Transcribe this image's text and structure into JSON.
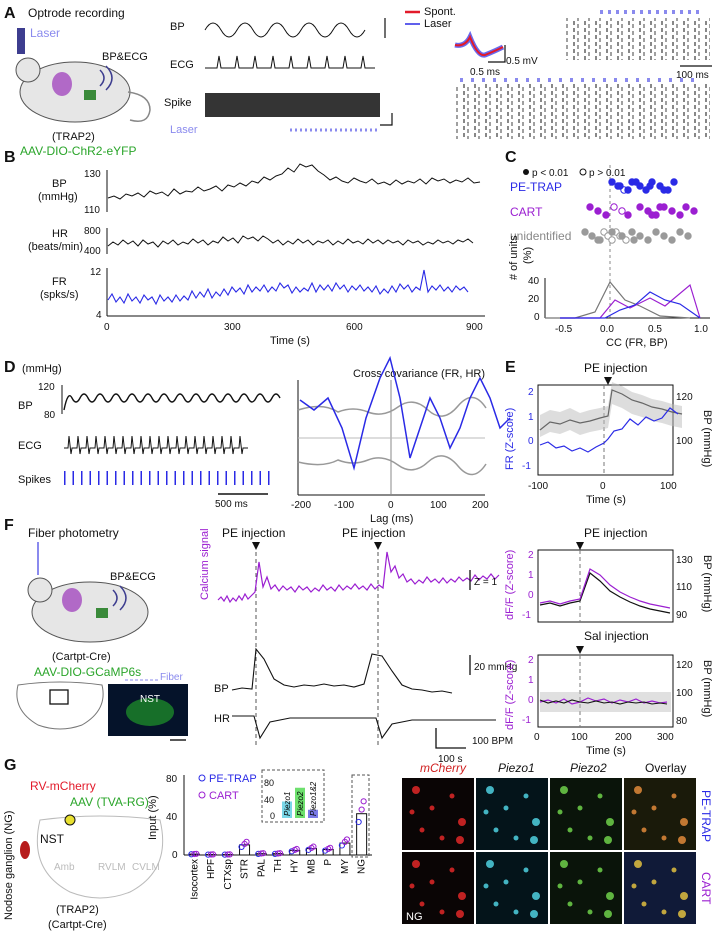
{
  "panels": {
    "A": {
      "letter": "A",
      "title": "Optrode recording",
      "laser": "Laser",
      "bp_ecg": "BP&ECG",
      "mouse_line": "(TRAP2)",
      "virus": "AAV-DIO-ChR2-eYFP",
      "trace_bp": "BP",
      "trace_ecg": "ECG",
      "trace_spike": "Spike",
      "trace_laser": "Laser",
      "legend_spont": "Spont.",
      "legend_laser": "Laser",
      "scale_mv": "0.5 mV",
      "scale_ms": "0.5 ms",
      "scale_raster": "100 ms"
    },
    "B": {
      "letter": "B",
      "bp_label_1": "BP",
      "bp_label_2": "(mmHg)",
      "hr_label_1": "HR",
      "hr_label_2": "(beats/min)",
      "fr_label_1": "FR",
      "fr_label_2": "(spks/s)",
      "bp_ticks": [
        "130",
        "110"
      ],
      "hr_ticks": [
        "800",
        "400"
      ],
      "fr_ticks": [
        "12",
        "4"
      ],
      "x_ticks": [
        "0",
        "300",
        "600",
        "900"
      ],
      "xlabel": "Time (s)"
    },
    "C": {
      "letter": "C",
      "legend_sig": "p < 0.01",
      "legend_ns": "p > 0.01",
      "group_pe": "PE-TRAP",
      "group_cart": "CART",
      "group_unid": "unidentified",
      "ylabel_1": "# of units",
      "ylabel_2": "(%)",
      "y_ticks": [
        "40",
        "20",
        "0"
      ],
      "x_ticks": [
        "-0.5",
        "0.0",
        "0.5",
        "1.0"
      ],
      "xlabel": "CC (FR, BP)"
    },
    "D": {
      "letter": "D",
      "unit": "(mmHg)",
      "bp_ticks": [
        "120",
        "80"
      ],
      "bp": "BP",
      "ecg": "ECG",
      "spikes": "Spikes",
      "scale": "500 ms",
      "cc_title": "Cross covariance (FR, HR)",
      "x_ticks": [
        "-200",
        "-100",
        "0",
        "100",
        "200"
      ],
      "xlabel": "Lag (ms)"
    },
    "E": {
      "letter": "E",
      "title": "PE injection",
      "ylabel_left": "FR (Z-score)",
      "ylabel_right": "BP (mmHg)",
      "left_ticks": [
        "2",
        "1",
        "0",
        "-1"
      ],
      "right_ticks": [
        "120",
        "100"
      ],
      "x_ticks": [
        "-100",
        "0",
        "100"
      ],
      "xlabel": "Time (s)"
    },
    "F": {
      "letter": "F",
      "fiber_photometry": "Fiber photometry",
      "bp_ecg": "BP&ECG",
      "mouse_line": "(Cartpt-Cre)",
      "virus": "AAV-DIO-GCaMP6s",
      "fiber": "Fiber",
      "nst": "NST",
      "pe1": "PE injection",
      "pe2": "PE injection",
      "calcium": "Calcium signal",
      "z_scale": "Z = 1",
      "bp": "BP",
      "bp_scale": "20 mmHg",
      "hr": "HR",
      "hr_scale": "100 BPM",
      "t_scale": "100 s",
      "pe_title": "PE injection",
      "sal_title": "Sal injection",
      "ylabel_left": "dF/F (Z-score)",
      "ylabel_right": "BP (mmHg)",
      "top_left_ticks": [
        "2",
        "1",
        "0",
        "-1"
      ],
      "top_right_ticks": [
        "130",
        "110",
        "90"
      ],
      "bot_left_ticks": [
        "2",
        "1",
        "0",
        "-1"
      ],
      "bot_right_ticks": [
        "120",
        "100",
        "80"
      ],
      "x_ticks": [
        "0",
        "100",
        "200",
        "300"
      ],
      "xlabel": "Time (s)"
    },
    "G": {
      "letter": "G",
      "rv": "RV-mCherry",
      "aav": "AAV (TVA-RG)",
      "ng": "Nodose ganglion (NG)",
      "nst": "NST",
      "amb": "Amb",
      "rvlm": "RVLM",
      "cvlm": "CVLM",
      "mouse_line_1": "(TRAP2)",
      "mouse_line_2": "(Cartpt-Cre)",
      "legend_pe": "PE-TRAP",
      "legend_cart": "CART",
      "ylabel": "Input (%)",
      "y_ticks": [
        "80",
        "40",
        "0"
      ],
      "inset_ticks": [
        "80",
        "40",
        "0"
      ],
      "inset_bars": [
        "Piezo1",
        "Piezo2",
        "Piezo1&2"
      ],
      "col_mcherry": "mCherry",
      "col_piezo1": "Piezo1",
      "col_piezo2": "Piezo2",
      "col_overlay": "Overlay",
      "row_pe": "PE-TRAP",
      "row_cart": "CART",
      "ng_label": "NG"
    }
  },
  "chart_data": [
    {
      "type": "bar",
      "panel": "G",
      "categories": [
        "Isocortex",
        "HPF",
        "CTXsp",
        "STR",
        "PAL",
        "TH",
        "HY",
        "MB",
        "P",
        "MY",
        "NG"
      ],
      "values": [
        1,
        0.5,
        0.5,
        11,
        1.5,
        1.5,
        5,
        7,
        6,
        13,
        45
      ],
      "ylabel": "Input (%)",
      "ylim": [
        0,
        85
      ]
    },
    {
      "type": "bar",
      "panel": "G-inset",
      "categories": [
        "Piezo1",
        "Piezo2",
        "Piezo1&2"
      ],
      "values": [
        30,
        55,
        15
      ],
      "ylim": [
        0,
        80
      ]
    }
  ],
  "colors": {
    "pe_trap": "#2a2ae6",
    "cart": "#9b1fd1",
    "unidentified": "#9a9a9a",
    "laser": "#8a8aee",
    "virus_green": "#2aa52a",
    "spont": "#e21a2a"
  }
}
